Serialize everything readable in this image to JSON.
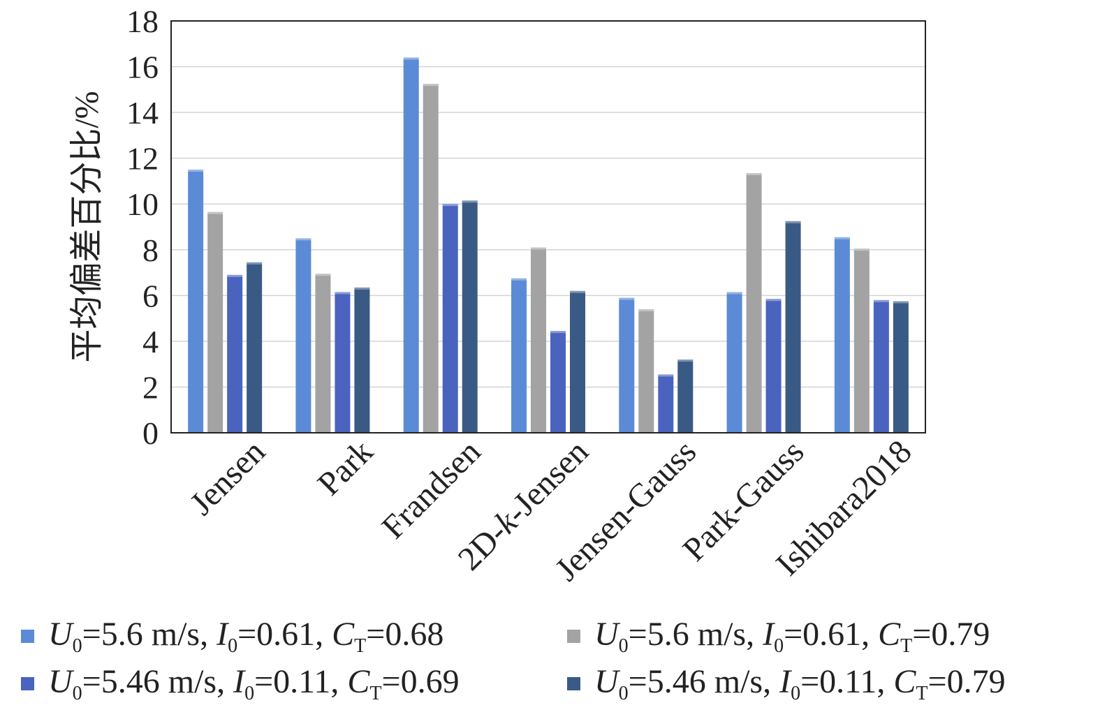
{
  "chart_data": {
    "type": "bar",
    "ylabel": "平均偏差百分比/%",
    "ylim": [
      0,
      18
    ],
    "yticks": [
      0,
      2,
      4,
      6,
      8,
      10,
      12,
      14,
      16,
      18
    ],
    "grid": "horizontal",
    "legend_position": "bottom",
    "categories": [
      "Jensen",
      "Park",
      "Frandsen",
      "2D-k-Jensen",
      "Jensen-Gauss",
      "Park-Gauss",
      "Ishibara2018"
    ],
    "series": [
      {
        "name": "U0=5.6 m/s, I0=0.61, CT=0.68",
        "color": "#5b8bd6",
        "values": [
          11.5,
          8.5,
          16.4,
          6.75,
          5.9,
          6.15,
          8.55
        ]
      },
      {
        "name": "U0=5.6 m/s, I0=0.61, CT=0.79",
        "color": "#a3a3a3",
        "values": [
          9.65,
          6.95,
          15.25,
          8.1,
          5.4,
          11.35,
          8.05
        ]
      },
      {
        "name": "U0=5.46 m/s, I0=0.11, CT=0.69",
        "color": "#4a63be",
        "values": [
          6.9,
          6.15,
          10.0,
          4.45,
          2.55,
          5.85,
          5.8
        ]
      },
      {
        "name": "U0=5.46 m/s, I0=0.11, CT=0.79",
        "color": "#3a5a86",
        "values": [
          7.45,
          6.35,
          10.15,
          6.2,
          3.2,
          9.25,
          5.75
        ]
      }
    ]
  },
  "legend": {
    "items": [
      {
        "u_sym": "U",
        "u_sub": "0",
        "u_val": "=5.6 m/s, ",
        "i_sym": "I",
        "i_sub": "0",
        "i_val": "=0.61, ",
        "c_sym": "C",
        "c_sub": "T",
        "c_val": "=0.68"
      },
      {
        "u_sym": "U",
        "u_sub": "0",
        "u_val": "=5.6 m/s, ",
        "i_sym": "I",
        "i_sub": "0",
        "i_val": "=0.61, ",
        "c_sym": "C",
        "c_sub": "T",
        "c_val": "=0.79"
      },
      {
        "u_sym": "U",
        "u_sub": "0",
        "u_val": "=5.46 m/s, ",
        "i_sym": "I",
        "i_sub": "0",
        "i_val": "=0.11, ",
        "c_sym": "C",
        "c_sub": "T",
        "c_val": "=0.69"
      },
      {
        "u_sym": "U",
        "u_sub": "0",
        "u_val": "=5.46 m/s, ",
        "i_sym": "I",
        "i_sub": "0",
        "i_val": "=0.11, ",
        "c_sym": "C",
        "c_sub": "T",
        "c_val": "=0.79"
      }
    ]
  }
}
